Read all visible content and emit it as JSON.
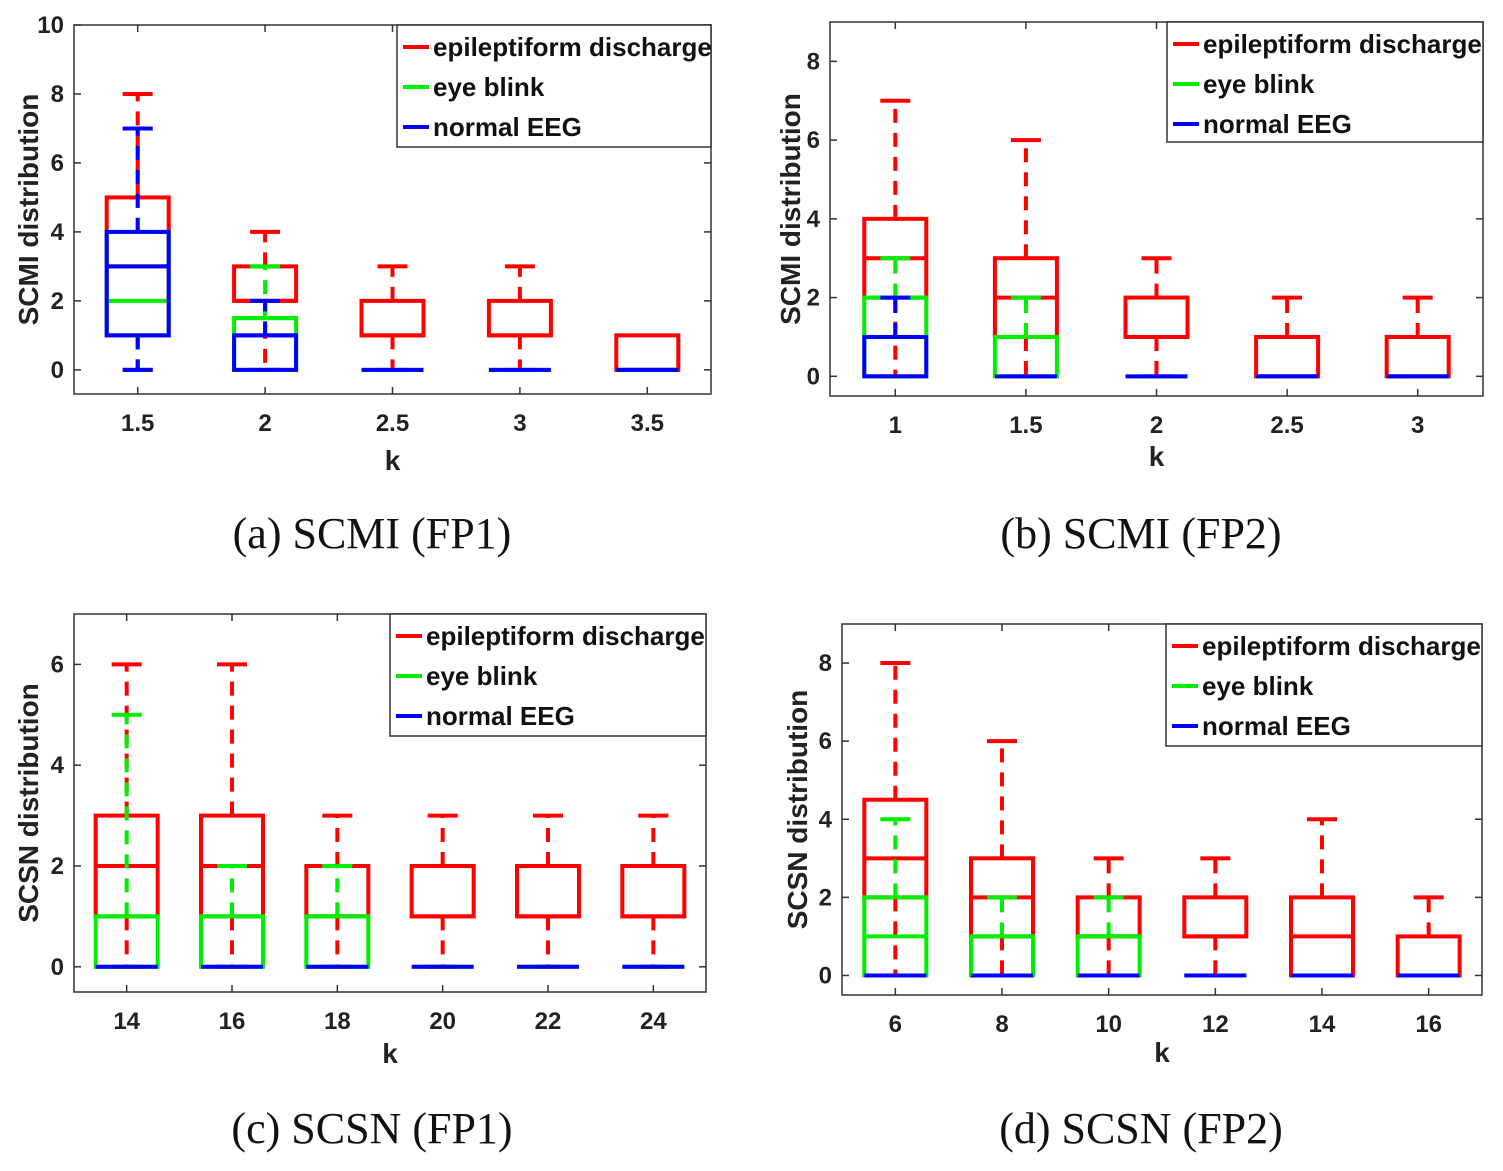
{
  "chart_data": [
    {
      "type": "box",
      "caption": "(a) SCMI (FP1)",
      "xlabel": "k",
      "ylabel": "SCMI distribution",
      "categories": [
        "1.5",
        "2",
        "2.5",
        "3",
        "3.5"
      ],
      "ylim": [
        -0.7,
        10
      ],
      "yticks": [
        "0",
        "2",
        "4",
        "6",
        "8",
        "10"
      ],
      "legend": {
        "position": "top-right",
        "entries": [
          "epileptiform discharge",
          "eye blink",
          "normal EEG"
        ]
      },
      "series": [
        {
          "name": "epileptiform discharge",
          "color": "#ff0000",
          "boxes": [
            [
              0,
              1,
              3,
              5,
              8
            ],
            [
              0,
              2,
              2,
              3,
              4
            ],
            [
              0,
              1,
              1,
              2,
              3
            ],
            [
              0,
              1,
              1,
              2,
              3
            ],
            [
              0,
              0,
              0,
              1,
              1
            ]
          ]
        },
        {
          "name": "eye blink",
          "color": "#00ee00",
          "boxes": [
            [
              0,
              1,
              2,
              4,
              7
            ],
            [
              0,
              0,
              1.5,
              1.5,
              3
            ],
            [
              0,
              0,
              0,
              0,
              0
            ],
            [
              0,
              0,
              0,
              0,
              0
            ],
            [
              0,
              0,
              0,
              0,
              0
            ]
          ]
        },
        {
          "name": "normal EEG",
          "color": "#0000ff",
          "boxes": [
            [
              0,
              1,
              3,
              4,
              7
            ],
            [
              0,
              0,
              1,
              1,
              2
            ],
            [
              0,
              0,
              0,
              0,
              0
            ],
            [
              0,
              0,
              0,
              0,
              0
            ],
            [
              0,
              0,
              0,
              0,
              0
            ]
          ]
        }
      ]
    },
    {
      "type": "box",
      "caption": "(b) SCMI (FP2)",
      "xlabel": "k",
      "ylabel": "SCMI distribution",
      "categories": [
        "1",
        "1.5",
        "2",
        "2.5",
        "3"
      ],
      "ylim": [
        -0.5,
        9
      ],
      "yticks": [
        "0",
        "2",
        "4",
        "6",
        "8"
      ],
      "legend": {
        "position": "top-right",
        "entries": [
          "epileptiform discharge",
          "eye blink",
          "normal EEG"
        ]
      },
      "series": [
        {
          "name": "epileptiform discharge",
          "color": "#ff0000",
          "boxes": [
            [
              0,
              2,
              3,
              4,
              7
            ],
            [
              0,
              1,
              2,
              3,
              6
            ],
            [
              0,
              1,
              1,
              2,
              3
            ],
            [
              0,
              0,
              0,
              1,
              2
            ],
            [
              0,
              0,
              0,
              1,
              2
            ]
          ]
        },
        {
          "name": "eye blink",
          "color": "#00ee00",
          "boxes": [
            [
              0,
              0,
              2,
              2,
              3
            ],
            [
              0,
              0,
              1,
              1,
              2
            ],
            [
              0,
              0,
              0,
              0,
              0
            ],
            [
              0,
              0,
              0,
              0,
              0
            ],
            [
              0,
              0,
              0,
              0,
              0
            ]
          ]
        },
        {
          "name": "normal EEG",
          "color": "#0000ff",
          "boxes": [
            [
              0,
              0,
              1,
              1,
              2
            ],
            [
              0,
              0,
              0,
              0,
              0
            ],
            [
              0,
              0,
              0,
              0,
              0
            ],
            [
              0,
              0,
              0,
              0,
              0
            ],
            [
              0,
              0,
              0,
              0,
              0
            ]
          ]
        }
      ]
    },
    {
      "type": "box",
      "caption": "(c) SCSN (FP1)",
      "xlabel": "k",
      "ylabel": "SCSN distribution",
      "categories": [
        "14",
        "16",
        "18",
        "20",
        "22",
        "24"
      ],
      "ylim": [
        -0.5,
        7
      ],
      "yticks": [
        "0",
        "2",
        "4",
        "6"
      ],
      "legend": {
        "position": "top-right",
        "entries": [
          "epileptiform discharge",
          "eye blink",
          "normal EEG"
        ]
      },
      "series": [
        {
          "name": "epileptiform discharge",
          "color": "#ff0000",
          "boxes": [
            [
              0,
              1,
              2,
              3,
              6
            ],
            [
              0,
              1,
              2,
              3,
              6
            ],
            [
              0,
              1,
              1,
              2,
              3
            ],
            [
              0,
              1,
              1,
              2,
              3
            ],
            [
              0,
              1,
              1,
              2,
              3
            ],
            [
              0,
              1,
              1,
              2,
              3
            ]
          ]
        },
        {
          "name": "eye blink",
          "color": "#00ee00",
          "boxes": [
            [
              0,
              0,
              1,
              1,
              5
            ],
            [
              0,
              0,
              1,
              1,
              2
            ],
            [
              0,
              0,
              1,
              1,
              2
            ],
            [
              0,
              0,
              0,
              0,
              0
            ],
            [
              0,
              0,
              0,
              0,
              0
            ],
            [
              0,
              0,
              0,
              0,
              0
            ]
          ]
        },
        {
          "name": "normal EEG",
          "color": "#0000ff",
          "boxes": [
            [
              0,
              0,
              0,
              0,
              0
            ],
            [
              0,
              0,
              0,
              0,
              0
            ],
            [
              0,
              0,
              0,
              0,
              0
            ],
            [
              0,
              0,
              0,
              0,
              0
            ],
            [
              0,
              0,
              0,
              0,
              0
            ],
            [
              0,
              0,
              0,
              0,
              0
            ]
          ]
        }
      ]
    },
    {
      "type": "box",
      "caption": "(d) SCSN (FP2)",
      "xlabel": "k",
      "ylabel": "SCSN distribution",
      "categories": [
        "6",
        "8",
        "10",
        "12",
        "14",
        "16"
      ],
      "ylim": [
        -0.5,
        9
      ],
      "yticks": [
        "0",
        "2",
        "4",
        "6",
        "8"
      ],
      "legend": {
        "position": "top-right",
        "entries": [
          "epileptiform discharge",
          "eye blink",
          "normal EEG"
        ]
      },
      "series": [
        {
          "name": "epileptiform discharge",
          "color": "#ff0000",
          "boxes": [
            [
              0,
              2,
              3,
              4.5,
              8
            ],
            [
              0,
              1,
              2,
              3,
              6
            ],
            [
              0,
              1,
              1,
              2,
              3
            ],
            [
              0,
              1,
              1,
              2,
              3
            ],
            [
              0,
              0,
              1,
              2,
              4
            ],
            [
              0,
              0,
              0,
              1,
              2
            ]
          ]
        },
        {
          "name": "eye blink",
          "color": "#00ee00",
          "boxes": [
            [
              0,
              0,
              1,
              2,
              4
            ],
            [
              0,
              0,
              1,
              1,
              2
            ],
            [
              0,
              0,
              1,
              1,
              2
            ],
            [
              0,
              0,
              0,
              0,
              0
            ],
            [
              0,
              0,
              0,
              0,
              0
            ],
            [
              0,
              0,
              0,
              0,
              0
            ]
          ]
        },
        {
          "name": "normal EEG",
          "color": "#0000ff",
          "boxes": [
            [
              0,
              0,
              0,
              0,
              0
            ],
            [
              0,
              0,
              0,
              0,
              0
            ],
            [
              0,
              0,
              0,
              0,
              0
            ],
            [
              0,
              0,
              0,
              0,
              0
            ],
            [
              0,
              0,
              0,
              0,
              0
            ],
            [
              0,
              0,
              0,
              0,
              0
            ]
          ]
        }
      ]
    }
  ]
}
